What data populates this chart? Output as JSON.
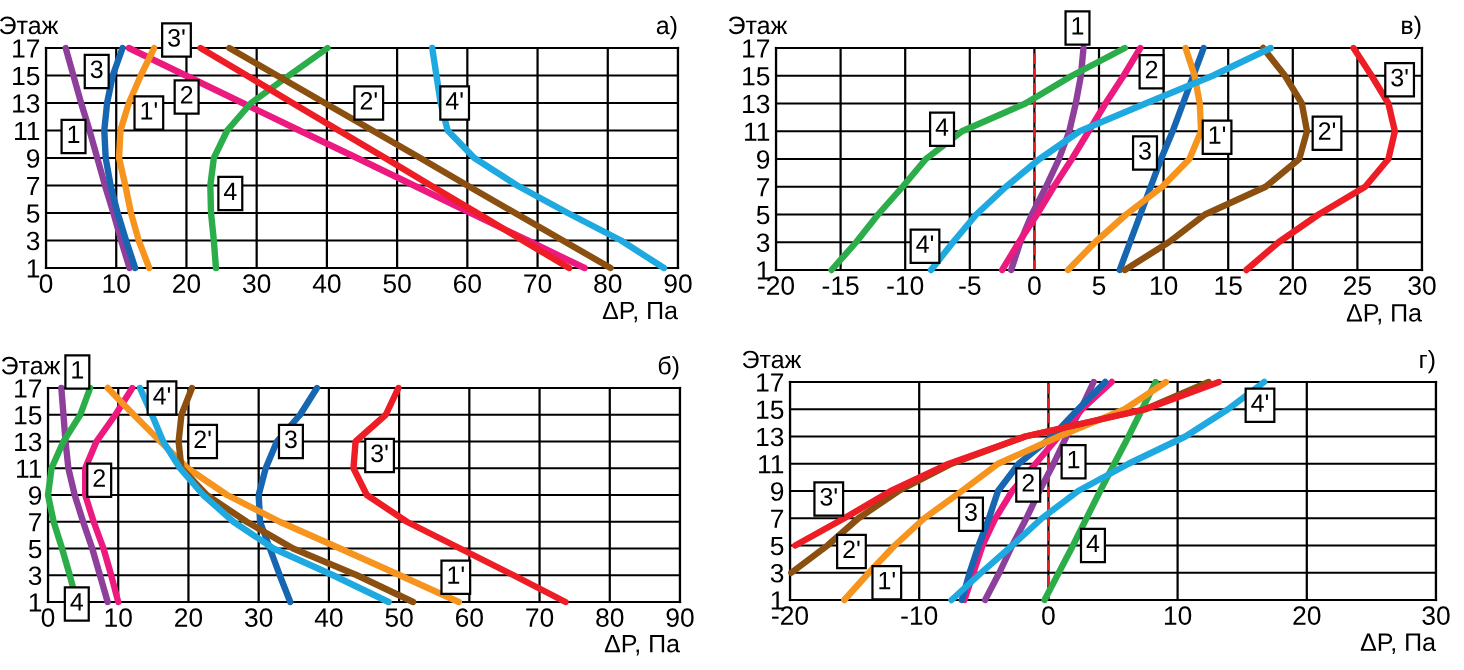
{
  "chart_data": [
    {
      "type": "line",
      "title": "а)",
      "xlabel": "ΔP, Па",
      "ylabel": "Этаж",
      "xlim": [
        0,
        90
      ],
      "xticks": [
        0,
        10,
        20,
        30,
        40,
        50,
        60,
        70,
        80,
        90
      ],
      "ylim": [
        1,
        17
      ],
      "yticks": [
        1,
        3,
        5,
        7,
        9,
        11,
        13,
        15,
        17
      ],
      "grid": true,
      "legend": false,
      "marker": "none",
      "line_style": "solid",
      "series": [
        {
          "name": "1",
          "color": "#8e3f9c",
          "x": [
            11.9,
            10.7,
            9.6,
            8.4,
            7.3,
            6.2,
            5.0,
            3.9,
            2.8
          ],
          "values": [
            1,
            3,
            5,
            7,
            9,
            11,
            13,
            15,
            17
          ]
        },
        {
          "name": "2",
          "color": "#ec1a7e",
          "x": [
            76.7,
            68.6,
            60.5,
            52.4,
            44.3,
            36.1,
            28.0,
            19.9,
            11.8
          ],
          "values": [
            1,
            3,
            5,
            7,
            9,
            11,
            13,
            15,
            17
          ]
        },
        {
          "name": "3",
          "color": "#1666b2",
          "x": [
            12.7,
            11.4,
            10.2,
            9.2,
            8.5,
            8.3,
            8.7,
            9.5,
            10.9
          ],
          "values": [
            1,
            3,
            5,
            7,
            9,
            11,
            13,
            15,
            17
          ]
        },
        {
          "name": "4",
          "color": "#2bad4a",
          "x": [
            24.2,
            23.9,
            23.5,
            23.4,
            23.9,
            25.8,
            29.2,
            34.6,
            40.1
          ],
          "values": [
            1,
            3,
            5,
            7,
            9,
            11,
            13,
            15,
            17
          ]
        },
        {
          "name": "1'",
          "color": "#f7941d",
          "x": [
            14.7,
            13.2,
            12.1,
            11.3,
            10.4,
            10.6,
            11.8,
            13.5,
            15.4
          ],
          "values": [
            1,
            3,
            5,
            7,
            9,
            11,
            13,
            15,
            17
          ]
        },
        {
          "name": "2'",
          "color": "#8b4f10",
          "x": [
            80.4,
            73.6,
            66.8,
            60.0,
            53.3,
            46.5,
            39.7,
            32.9,
            26.1
          ],
          "values": [
            1,
            3,
            5,
            7,
            9,
            11,
            13,
            15,
            17
          ]
        },
        {
          "name": "3'",
          "color": "#ee1c25",
          "x": [
            74.5,
            67.9,
            61.4,
            54.8,
            48.3,
            41.7,
            35.1,
            28.6,
            22.0
          ],
          "values": [
            1,
            3,
            5,
            7,
            9,
            11,
            13,
            15,
            17
          ]
        },
        {
          "name": "4'",
          "color": "#1fa9e1",
          "x": [
            88.0,
            81.9,
            74.3,
            67.1,
            61.0,
            57.2,
            56.2,
            55.6,
            55.0
          ],
          "values": [
            1,
            3,
            5,
            7,
            9,
            11,
            13,
            15,
            17
          ]
        }
      ]
    },
    {
      "type": "line",
      "title": "в)",
      "xlabel": "ΔP, Па",
      "ylabel": "Этаж",
      "xlim": [
        -20,
        30
      ],
      "xticks": [
        -20,
        -15,
        -10,
        -5,
        0,
        5,
        10,
        15,
        20,
        25,
        30
      ],
      "ylim": [
        1,
        17
      ],
      "yticks": [
        1,
        3,
        5,
        7,
        9,
        11,
        13,
        15,
        17
      ],
      "grid": true,
      "legend": false,
      "marker": "none",
      "line_style": "solid",
      "ref_lines": [
        {
          "axis": "x",
          "value": 0,
          "color": "#e0201f",
          "line_style": "dashed"
        }
      ],
      "series": [
        {
          "name": "1",
          "color": "#8e3f9c",
          "x": [
            -1.8,
            -1.1,
            -0.2,
            0.9,
            1.9,
            2.7,
            3.2,
            3.6,
            3.8
          ],
          "values": [
            1,
            3,
            5,
            7,
            9,
            11,
            13,
            15,
            17
          ]
        },
        {
          "name": "2",
          "color": "#ec1a7e",
          "x": [
            -2.5,
            -1.2,
            0.2,
            1.5,
            2.9,
            4.2,
            5.5,
            6.9,
            8.2
          ],
          "values": [
            1,
            3,
            5,
            7,
            9,
            11,
            13,
            15,
            17
          ]
        },
        {
          "name": "3",
          "color": "#1666b2",
          "x": [
            6.6,
            7.4,
            8.2,
            9.0,
            9.8,
            10.7,
            11.5,
            12.3,
            13.1
          ],
          "values": [
            1,
            3,
            5,
            7,
            9,
            11,
            13,
            15,
            17
          ]
        },
        {
          "name": "4",
          "color": "#2bad4a",
          "x": [
            -15.7,
            -13.8,
            -12.1,
            -10.2,
            -8.4,
            -5.6,
            -0.7,
            2.9,
            7.0
          ],
          "values": [
            1,
            3,
            5,
            7,
            9,
            11,
            13,
            15,
            17
          ]
        },
        {
          "name": "1'",
          "color": "#f7941d",
          "x": [
            2.6,
            4.7,
            7.1,
            9.9,
            12.0,
            12.9,
            12.8,
            12.4,
            11.7
          ],
          "values": [
            1,
            3,
            5,
            7,
            9,
            11,
            13,
            15,
            17
          ]
        },
        {
          "name": "2'",
          "color": "#8b4f10",
          "x": [
            7.0,
            10.4,
            13.2,
            17.9,
            20.5,
            21.1,
            20.7,
            19.4,
            17.7
          ],
          "values": [
            1,
            3,
            5,
            7,
            9,
            11,
            13,
            15,
            17
          ]
        },
        {
          "name": "3'",
          "color": "#ee1c25",
          "x": [
            16.4,
            18.9,
            22.0,
            25.6,
            27.4,
            27.9,
            27.4,
            26.1,
            24.7
          ],
          "values": [
            1,
            3,
            5,
            7,
            9,
            11,
            13,
            15,
            17
          ]
        },
        {
          "name": "4'",
          "color": "#1fa9e1",
          "x": [
            -8.0,
            -6.3,
            -4.5,
            -2.2,
            0.4,
            3.5,
            8.6,
            13.8,
            18.3
          ],
          "values": [
            1,
            3,
            5,
            7,
            9,
            11,
            13,
            15,
            17
          ]
        }
      ]
    },
    {
      "type": "line",
      "title": "б)",
      "xlabel": "ΔP, Па",
      "ylabel": "Этаж",
      "xlim": [
        0,
        90
      ],
      "xticks": [
        0,
        10,
        20,
        30,
        40,
        50,
        60,
        70,
        80,
        90
      ],
      "ylim": [
        1,
        17
      ],
      "yticks": [
        1,
        3,
        5,
        7,
        9,
        11,
        13,
        15,
        17
      ],
      "grid": true,
      "legend": false,
      "marker": "none",
      "line_style": "solid",
      "series": [
        {
          "name": "1",
          "color": "#8e3f9c",
          "x": [
            8.5,
            7.4,
            6.3,
            5.0,
            3.8,
            2.9,
            2.5,
            2.2,
            1.9
          ],
          "values": [
            1,
            3,
            5,
            7,
            9,
            11,
            13,
            15,
            17
          ]
        },
        {
          "name": "2",
          "color": "#ec1a7e",
          "x": [
            10.0,
            9.0,
            7.9,
            6.5,
            5.3,
            5.3,
            6.9,
            9.6,
            12.0
          ],
          "values": [
            1,
            3,
            5,
            7,
            9,
            11,
            13,
            15,
            17
          ]
        },
        {
          "name": "3",
          "color": "#1666b2",
          "x": [
            34.5,
            33.0,
            31.6,
            30.2,
            30.0,
            31.0,
            32.6,
            35.9,
            38.3
          ],
          "values": [
            1,
            3,
            5,
            7,
            9,
            11,
            13,
            15,
            17
          ]
        },
        {
          "name": "4",
          "color": "#2bad4a",
          "x": [
            4.1,
            3.1,
            2.0,
            0.8,
            0.0,
            0.5,
            2.2,
            4.6,
            6.0
          ],
          "values": [
            1,
            3,
            5,
            7,
            9,
            11,
            13,
            15,
            17
          ]
        },
        {
          "name": "1'",
          "color": "#f7941d",
          "x": [
            58.5,
            50.1,
            41.6,
            33.0,
            25.5,
            19.9,
            16.0,
            12.2,
            8.5
          ],
          "values": [
            1,
            3,
            5,
            7,
            9,
            11,
            13,
            15,
            17
          ]
        },
        {
          "name": "2'",
          "color": "#8b4f10",
          "x": [
            52.0,
            44.0,
            34.9,
            28.3,
            22.6,
            19.0,
            18.6,
            19.0,
            20.5
          ],
          "values": [
            1,
            3,
            5,
            7,
            9,
            11,
            13,
            15,
            17
          ]
        },
        {
          "name": "3'",
          "color": "#ee1c25",
          "x": [
            73.7,
            66.3,
            58.7,
            51.1,
            45.4,
            43.5,
            43.8,
            48.1,
            49.9
          ],
          "values": [
            1,
            3,
            5,
            7,
            9,
            11,
            13,
            15,
            17
          ]
        },
        {
          "name": "4'",
          "color": "#1fa9e1",
          "x": [
            48.5,
            40.6,
            32.1,
            26.4,
            22.1,
            18.8,
            16.4,
            14.8,
            13.1
          ],
          "values": [
            1,
            3,
            5,
            7,
            9,
            11,
            13,
            15,
            17
          ]
        }
      ]
    },
    {
      "type": "line",
      "title": "г)",
      "xlabel": "ΔP, Па",
      "ylabel": "Этаж",
      "xlim": [
        -20,
        30
      ],
      "xticks": [
        -20,
        -10,
        0,
        10,
        20,
        30
      ],
      "ylim": [
        1,
        17
      ],
      "yticks": [
        1,
        3,
        5,
        7,
        9,
        11,
        13,
        15,
        17
      ],
      "grid": true,
      "legend": false,
      "marker": "none",
      "line_style": "solid",
      "ref_lines": [
        {
          "axis": "x",
          "value": 0,
          "color": "#e0201f",
          "line_style": "dashed"
        }
      ],
      "series": [
        {
          "name": "1",
          "color": "#8e3f9c",
          "x": [
            -4.9,
            -3.8,
            -2.8,
            -1.7,
            -0.7,
            0.4,
            1.4,
            2.5,
            3.5
          ],
          "values": [
            1,
            3,
            5,
            7,
            9,
            11,
            13,
            15,
            17
          ]
        },
        {
          "name": "2",
          "color": "#ec1a7e",
          "x": [
            -6.5,
            -5.8,
            -5.1,
            -4.1,
            -2.8,
            -1.0,
            0.8,
            2.6,
            4.9
          ],
          "values": [
            1,
            3,
            5,
            7,
            9,
            11,
            13,
            15,
            17
          ]
        },
        {
          "name": "3",
          "color": "#1666b2",
          "x": [
            -6.7,
            -6.1,
            -5.4,
            -4.6,
            -3.9,
            -2.3,
            0.3,
            2.3,
            4.4
          ],
          "values": [
            1,
            3,
            5,
            7,
            9,
            11,
            13,
            15,
            17
          ]
        },
        {
          "name": "4",
          "color": "#2bad4a",
          "x": [
            -0.3,
            1.9,
            4.0,
            6.2,
            8.3
          ],
          "values": [
            1,
            5,
            9,
            13,
            17
          ]
        },
        {
          "name": "1'",
          "color": "#f7941d",
          "x": [
            -15.8,
            -13.9,
            -11.9,
            -9.6,
            -6.7,
            -3.9,
            0.8,
            5.9,
            9.1
          ],
          "values": [
            1,
            3,
            5,
            7,
            9,
            11,
            13,
            15,
            17
          ]
        },
        {
          "name": "2'",
          "color": "#8b4f10",
          "x": [
            -19.9,
            -17.1,
            -14.7,
            -11.6,
            -7.5,
            -1.8,
            7.5,
            12.4
          ],
          "values": [
            3,
            5,
            7,
            9,
            11,
            13,
            15,
            17
          ]
        },
        {
          "name": "3'",
          "color": "#ee1c25",
          "x": [
            -19.6,
            -15.8,
            -12.2,
            -7.7,
            -1.8,
            7.5,
            13.2
          ],
          "values": [
            5,
            7,
            9,
            11,
            13,
            15,
            17
          ]
        },
        {
          "name": "4'",
          "color": "#1fa9e1",
          "x": [
            -7.5,
            -5.2,
            -2.8,
            -0.5,
            2.3,
            6.2,
            10.6,
            13.9,
            16.7
          ],
          "values": [
            1,
            3,
            5,
            7,
            9,
            11,
            13,
            15,
            17
          ]
        }
      ]
    }
  ]
}
